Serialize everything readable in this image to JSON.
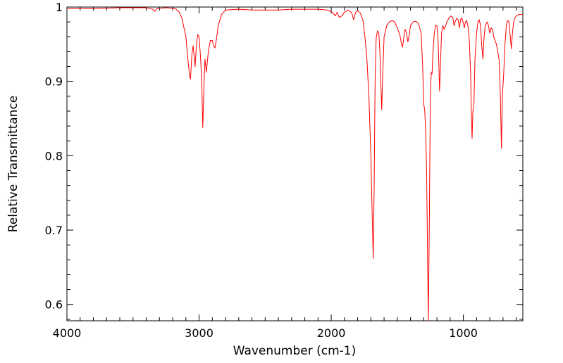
{
  "chart_data": {
    "type": "line",
    "xlabel": "Wavenumber (cm-1)",
    "ylabel": "Relative Transmittance",
    "xlim": [
      4000,
      550
    ],
    "ylim": [
      0.578,
      1.0
    ],
    "x_reversed": true,
    "grid": false,
    "xticks": [
      {
        "value": 4000,
        "label": "4000"
      },
      {
        "value": 3000,
        "label": "3000"
      },
      {
        "value": 2000,
        "label": "2000"
      },
      {
        "value": 1000,
        "label": "1000"
      }
    ],
    "yticks": [
      {
        "value": 1.0,
        "label": "1"
      },
      {
        "value": 0.9,
        "label": "0.9"
      },
      {
        "value": 0.8,
        "label": "0.8"
      },
      {
        "value": 0.7,
        "label": "0.7"
      },
      {
        "value": 0.6,
        "label": "0.6"
      }
    ],
    "series": [
      {
        "color": "#ff0000",
        "points": [
          [
            4000,
            0.998
          ],
          [
            3800,
            0.998
          ],
          [
            3600,
            0.999
          ],
          [
            3400,
            0.999
          ],
          [
            3350,
            0.997
          ],
          [
            3335,
            0.994
          ],
          [
            3320,
            0.998
          ],
          [
            3250,
            0.999
          ],
          [
            3180,
            0.998
          ],
          [
            3150,
            0.993
          ],
          [
            3130,
            0.985
          ],
          [
            3100,
            0.96
          ],
          [
            3085,
            0.93
          ],
          [
            3072,
            0.908
          ],
          [
            3065,
            0.903
          ],
          [
            3055,
            0.935
          ],
          [
            3045,
            0.948
          ],
          [
            3030,
            0.92
          ],
          [
            3020,
            0.95
          ],
          [
            3010,
            0.963
          ],
          [
            3000,
            0.96
          ],
          [
            2990,
            0.935
          ],
          [
            2980,
            0.9
          ],
          [
            2972,
            0.838
          ],
          [
            2962,
            0.9
          ],
          [
            2955,
            0.93
          ],
          [
            2945,
            0.912
          ],
          [
            2930,
            0.94
          ],
          [
            2915,
            0.955
          ],
          [
            2900,
            0.955
          ],
          [
            2890,
            0.948
          ],
          [
            2880,
            0.945
          ],
          [
            2870,
            0.955
          ],
          [
            2855,
            0.975
          ],
          [
            2830,
            0.99
          ],
          [
            2800,
            0.996
          ],
          [
            2700,
            0.997
          ],
          [
            2600,
            0.996
          ],
          [
            2500,
            0.996
          ],
          [
            2400,
            0.996
          ],
          [
            2300,
            0.997
          ],
          [
            2200,
            0.997
          ],
          [
            2100,
            0.997
          ],
          [
            2030,
            0.996
          ],
          [
            1990,
            0.993
          ],
          [
            1970,
            0.988
          ],
          [
            1955,
            0.993
          ],
          [
            1940,
            0.986
          ],
          [
            1920,
            0.988
          ],
          [
            1900,
            0.993
          ],
          [
            1870,
            0.996
          ],
          [
            1845,
            0.992
          ],
          [
            1830,
            0.983
          ],
          [
            1815,
            0.993
          ],
          [
            1800,
            0.995
          ],
          [
            1780,
            0.992
          ],
          [
            1760,
            0.982
          ],
          [
            1745,
            0.96
          ],
          [
            1730,
            0.93
          ],
          [
            1715,
            0.88
          ],
          [
            1700,
            0.8
          ],
          [
            1690,
            0.72
          ],
          [
            1682,
            0.662
          ],
          [
            1675,
            0.76
          ],
          [
            1668,
            0.9
          ],
          [
            1660,
            0.958
          ],
          [
            1650,
            0.968
          ],
          [
            1640,
            0.965
          ],
          [
            1632,
            0.94
          ],
          [
            1625,
            0.9
          ],
          [
            1618,
            0.862
          ],
          [
            1610,
            0.91
          ],
          [
            1600,
            0.96
          ],
          [
            1580,
            0.975
          ],
          [
            1560,
            0.98
          ],
          [
            1540,
            0.982
          ],
          [
            1520,
            0.98
          ],
          [
            1500,
            0.972
          ],
          [
            1480,
            0.962
          ],
          [
            1468,
            0.95
          ],
          [
            1460,
            0.946
          ],
          [
            1450,
            0.96
          ],
          [
            1440,
            0.97
          ],
          [
            1430,
            0.965
          ],
          [
            1420,
            0.953
          ],
          [
            1410,
            0.962
          ],
          [
            1400,
            0.975
          ],
          [
            1380,
            0.98
          ],
          [
            1360,
            0.981
          ],
          [
            1340,
            0.978
          ],
          [
            1320,
            0.965
          ],
          [
            1308,
            0.92
          ],
          [
            1300,
            0.87
          ],
          [
            1292,
            0.86
          ],
          [
            1285,
            0.83
          ],
          [
            1278,
            0.78
          ],
          [
            1272,
            0.68
          ],
          [
            1265,
            0.578
          ],
          [
            1258,
            0.7
          ],
          [
            1250,
            0.88
          ],
          [
            1243,
            0.912
          ],
          [
            1237,
            0.91
          ],
          [
            1230,
            0.94
          ],
          [
            1220,
            0.965
          ],
          [
            1210,
            0.975
          ],
          [
            1200,
            0.975
          ],
          [
            1190,
            0.95
          ],
          [
            1180,
            0.887
          ],
          [
            1172,
            0.93
          ],
          [
            1165,
            0.965
          ],
          [
            1155,
            0.975
          ],
          [
            1145,
            0.97
          ],
          [
            1135,
            0.974
          ],
          [
            1125,
            0.98
          ],
          [
            1110,
            0.985
          ],
          [
            1095,
            0.988
          ],
          [
            1080,
            0.986
          ],
          [
            1070,
            0.975
          ],
          [
            1062,
            0.98
          ],
          [
            1050,
            0.985
          ],
          [
            1040,
            0.983
          ],
          [
            1030,
            0.972
          ],
          [
            1020,
            0.984
          ],
          [
            1010,
            0.985
          ],
          [
            1000,
            0.978
          ],
          [
            992,
            0.972
          ],
          [
            985,
            0.98
          ],
          [
            975,
            0.982
          ],
          [
            965,
            0.974
          ],
          [
            955,
            0.955
          ],
          [
            945,
            0.91
          ],
          [
            940,
            0.86
          ],
          [
            934,
            0.823
          ],
          [
            928,
            0.86
          ],
          [
            920,
            0.87
          ],
          [
            912,
            0.93
          ],
          [
            900,
            0.965
          ],
          [
            890,
            0.98
          ],
          [
            880,
            0.983
          ],
          [
            870,
            0.975
          ],
          [
            862,
            0.95
          ],
          [
            852,
            0.93
          ],
          [
            845,
            0.955
          ],
          [
            835,
            0.975
          ],
          [
            820,
            0.98
          ],
          [
            810,
            0.975
          ],
          [
            800,
            0.965
          ],
          [
            790,
            0.972
          ],
          [
            780,
            0.97
          ],
          [
            770,
            0.96
          ],
          [
            760,
            0.955
          ],
          [
            750,
            0.95
          ],
          [
            740,
            0.94
          ],
          [
            730,
            0.93
          ],
          [
            720,
            0.88
          ],
          [
            712,
            0.81
          ],
          [
            705,
            0.88
          ],
          [
            695,
            0.91
          ],
          [
            685,
            0.95
          ],
          [
            675,
            0.975
          ],
          [
            665,
            0.982
          ],
          [
            655,
            0.98
          ],
          [
            645,
            0.96
          ],
          [
            637,
            0.944
          ],
          [
            630,
            0.962
          ],
          [
            620,
            0.98
          ],
          [
            610,
            0.985
          ],
          [
            600,
            0.988
          ],
          [
            580,
            0.99
          ],
          [
            550,
            0.99
          ]
        ]
      }
    ]
  }
}
